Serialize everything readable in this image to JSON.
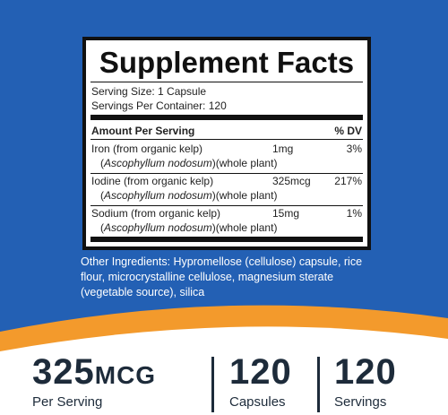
{
  "label": {
    "title": "Supplement Facts",
    "serving_size": "Serving Size: 1 Capsule",
    "servings_per_container": "Servings Per Container: 120",
    "header": {
      "amount": "Amount Per Serving",
      "dv": "% DV"
    },
    "rows": [
      {
        "name": "Iron (from organic kelp)",
        "latin": "Ascophyllum nodosum",
        "part": "(whole plant)",
        "amount": "1mg",
        "dv": "3%"
      },
      {
        "name": "Iodine (from organic kelp)",
        "latin": "Ascophyllum nodosum",
        "part": "(whole plant)",
        "amount": "325mcg",
        "dv": "217%"
      },
      {
        "name": "Sodium (from organic kelp)",
        "latin": "Ascophyllum nodosum",
        "part": "(whole plant)",
        "amount": "15mg",
        "dv": "1%"
      }
    ]
  },
  "other_ingredients": "Other Ingredients: Hypromellose (cellulose) capsule, rice flour, microcrystalline cellulose, magnesium sterate (vegetable source), silica",
  "stats": [
    {
      "value": "325",
      "unit": "MCG",
      "caption": "Per Serving"
    },
    {
      "value": "120",
      "caption": "Capsules"
    },
    {
      "value": "120",
      "caption": "Servings"
    }
  ]
}
